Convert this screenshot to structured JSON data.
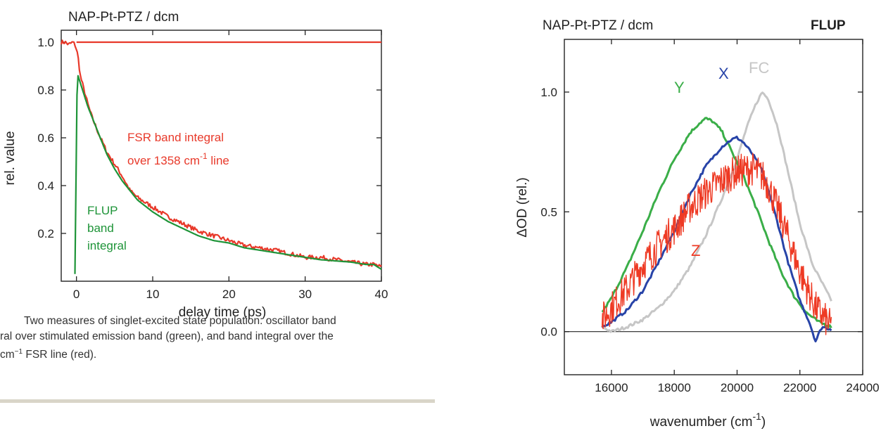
{
  "chart_data": [
    {
      "type": "line",
      "title": "NAP-Pt-PTZ / dcm",
      "xlabel": "delay time (ps)",
      "ylabel": "rel. value",
      "xlim": [
        -2,
        40
      ],
      "ylim": [
        0,
        1.05
      ],
      "xticks": [
        0,
        10,
        20,
        30,
        40
      ],
      "yticks": [
        0.2,
        0.4,
        0.6,
        0.8,
        1.0
      ],
      "xtick_labels": [
        "0",
        "10",
        "20",
        "30",
        "40"
      ],
      "ytick_labels": [
        "0.2",
        "0.4",
        "0.6",
        "0.8",
        "1.0"
      ],
      "annotations": [
        {
          "lines": [
            "FSR band integral",
            "over 1358 cm-1 line"
          ],
          "color": "#e8392a"
        },
        {
          "lines": [
            "FLUP",
            "band",
            "integral"
          ],
          "color": "#1e9438"
        }
      ],
      "series": [
        {
          "color": "#e8392a",
          "x": [
            -2,
            -1.5,
            -1,
            -0.5,
            -0.2,
            0,
            0.2,
            0.5,
            1,
            1.5,
            2,
            3,
            4,
            5,
            6,
            7,
            8,
            10,
            12,
            14,
            16,
            18,
            20,
            22,
            24,
            26,
            28,
            30,
            32,
            34,
            36,
            38,
            39,
            40
          ],
          "y": [
            1.0,
            1.0,
            0.99,
            1.0,
            0.99,
            0.97,
            0.94,
            0.86,
            0.8,
            0.74,
            0.69,
            0.61,
            0.54,
            0.49,
            0.44,
            0.38,
            0.35,
            0.31,
            0.27,
            0.24,
            0.21,
            0.19,
            0.17,
            0.15,
            0.14,
            0.13,
            0.115,
            0.1,
            0.1,
            0.09,
            0.08,
            0.07,
            0.07,
            0.06
          ]
        },
        {
          "color": "#e8392a",
          "x": [
            0,
            40
          ],
          "y": [
            1.0,
            1.0
          ]
        },
        {
          "color": "#1e9438",
          "x": [
            -0.2,
            -0.1,
            0,
            0.1,
            0.2,
            0.3,
            0.5,
            1,
            1.5,
            2,
            3,
            4,
            5,
            6,
            7,
            8,
            10,
            12,
            14,
            16,
            18,
            20,
            22,
            24,
            26,
            28,
            30,
            32,
            34,
            36,
            38,
            39,
            40
          ],
          "y": [
            0.03,
            0.3,
            0.65,
            0.84,
            0.86,
            0.85,
            0.83,
            0.78,
            0.73,
            0.69,
            0.61,
            0.53,
            0.47,
            0.42,
            0.38,
            0.34,
            0.29,
            0.25,
            0.22,
            0.19,
            0.17,
            0.16,
            0.14,
            0.13,
            0.12,
            0.11,
            0.1,
            0.09,
            0.085,
            0.08,
            0.07,
            0.07,
            0.05
          ]
        }
      ]
    },
    {
      "type": "line",
      "title": "NAP-Pt-PTZ / dcm",
      "subtitle": "FLUP",
      "xlabel": "wavenumber (cm-1)",
      "ylabel": "ΔOD  (rel.)",
      "xlim": [
        14500,
        24000
      ],
      "ylim": [
        -0.18,
        1.22
      ],
      "xticks": [
        16000,
        18000,
        20000,
        22000,
        24000
      ],
      "yticks": [
        0.0,
        0.5,
        1.0
      ],
      "xtick_labels": [
        "16000",
        "18000",
        "20000",
        "22000",
        "24000"
      ],
      "ytick_labels": [
        "0.0",
        "0.5",
        "1.0"
      ],
      "zero_line": true,
      "series": [
        {
          "name": "FC",
          "color": "#c6c6c6",
          "x": [
            15700,
            16000,
            16500,
            17000,
            17500,
            18000,
            18500,
            19000,
            19500,
            20000,
            20300,
            20600,
            20800,
            21000,
            21300,
            21600,
            22000,
            22400,
            22800,
            23000
          ],
          "y": [
            0.02,
            0.0,
            0.02,
            0.05,
            0.1,
            0.17,
            0.27,
            0.4,
            0.55,
            0.72,
            0.85,
            0.95,
            1.0,
            0.97,
            0.85,
            0.68,
            0.45,
            0.28,
            0.18,
            0.13
          ]
        },
        {
          "name": "Y",
          "color": "#3aae48",
          "x": [
            15700,
            16000,
            16500,
            17000,
            17500,
            18000,
            18500,
            18800,
            19000,
            19200,
            19500,
            19800,
            20200,
            20600,
            21000,
            21400,
            21800,
            22200,
            22600,
            23000
          ],
          "y": [
            0.08,
            0.14,
            0.27,
            0.42,
            0.58,
            0.72,
            0.83,
            0.87,
            0.89,
            0.88,
            0.84,
            0.76,
            0.65,
            0.52,
            0.38,
            0.25,
            0.15,
            0.08,
            0.04,
            0.02
          ]
        },
        {
          "name": "X",
          "color": "#2844a8",
          "x": [
            15700,
            16000,
            16500,
            17000,
            17500,
            18000,
            18500,
            19000,
            19500,
            19800,
            20000,
            20200,
            20500,
            20800,
            21000,
            21300,
            21600,
            22000,
            22300,
            22500,
            22700,
            23000
          ],
          "y": [
            0.02,
            0.04,
            0.09,
            0.17,
            0.29,
            0.42,
            0.57,
            0.69,
            0.77,
            0.8,
            0.81,
            0.79,
            0.74,
            0.67,
            0.59,
            0.45,
            0.3,
            0.13,
            0.04,
            -0.04,
            0.02,
            0.01
          ]
        },
        {
          "name": "Z",
          "color": "#ee3a24",
          "noisy": true,
          "x": [
            15700,
            16000,
            16500,
            17000,
            17500,
            18000,
            18500,
            19000,
            19500,
            20000,
            20500,
            20800,
            21000,
            21500,
            22000,
            22500,
            23000
          ],
          "y": [
            0.05,
            0.1,
            0.18,
            0.28,
            0.36,
            0.43,
            0.52,
            0.58,
            0.63,
            0.67,
            0.68,
            0.65,
            0.61,
            0.44,
            0.25,
            0.1,
            0.02
          ]
        }
      ]
    }
  ],
  "caption": {
    "line1": "Two measures of singlet-excited state population: oscillator band",
    "line2": "ral over stimulated emission band (green), and band integral over the",
    "line3": "cm−1 FSR line (red)."
  },
  "labels": {
    "left_annot_red_1": "FSR band integral",
    "left_annot_red_2": "over 1358 cm-1 line",
    "left_annot_green_1": "FLUP",
    "left_annot_green_2": "band",
    "left_annot_green_3": "integral",
    "right_title": "NAP-Pt-PTZ / dcm",
    "right_subtitle": "FLUP"
  }
}
